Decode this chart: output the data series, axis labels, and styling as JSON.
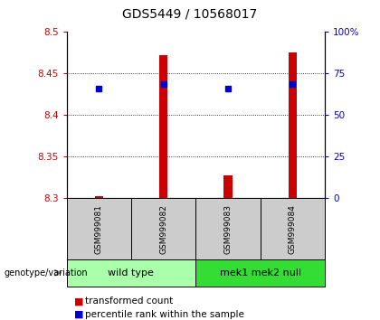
{
  "title": "GDS5449 / 10568017",
  "samples": [
    "GSM999081",
    "GSM999082",
    "GSM999083",
    "GSM999084"
  ],
  "groups": [
    {
      "label": "wild type",
      "indices": [
        0,
        1
      ],
      "color": "#AAFFAA"
    },
    {
      "label": "mek1 mek2 null",
      "indices": [
        2,
        3
      ],
      "color": "#33DD33"
    }
  ],
  "bar_base": 8.3,
  "bar_tops": [
    8.303,
    8.472,
    8.328,
    8.475
  ],
  "percentile_values": [
    8.432,
    8.437,
    8.432,
    8.437
  ],
  "ylim": [
    8.3,
    8.5
  ],
  "yticks_left": [
    8.3,
    8.35,
    8.4,
    8.45,
    8.5
  ],
  "yticks_right": [
    0,
    25,
    50,
    75,
    100
  ],
  "bar_color": "#CC0000",
  "percentile_color": "#0000CC",
  "background_color": "#FFFFFF",
  "sample_box_color": "#CCCCCC",
  "title_fontsize": 10,
  "tick_fontsize": 7.5,
  "sample_fontsize": 6.5,
  "group_fontsize": 8,
  "legend_fontsize": 7.5
}
